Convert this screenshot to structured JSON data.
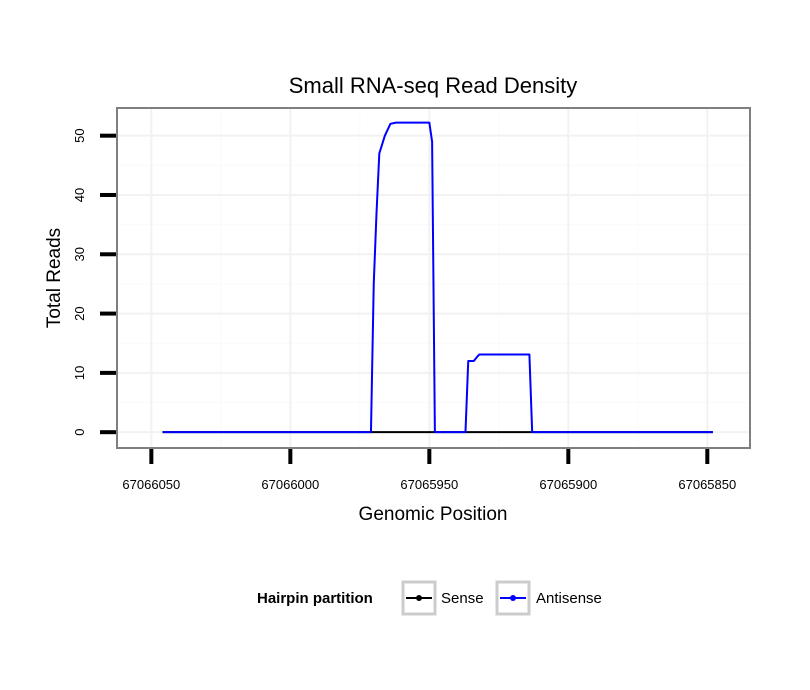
{
  "chart_data": {
    "type": "line",
    "title": "Small RNA-seq Read Density",
    "xlabel": "Genomic Position",
    "ylabel": "Total Reads",
    "xlim": [
      67066062,
      67065835
    ],
    "ylim": [
      -2.5,
      54.5
    ],
    "x_reversed": true,
    "x_ticks": [
      67066050,
      67066000,
      67065950,
      67065900,
      67065850
    ],
    "x_tick_labels": [
      "67066050",
      "67066000",
      "67065950",
      "67065900",
      "67065850"
    ],
    "y_ticks": [
      0,
      10,
      20,
      30,
      40,
      50
    ],
    "y_tick_labels": [
      "0",
      "10",
      "20",
      "30",
      "40",
      "50"
    ],
    "grid": true,
    "legend": {
      "title": "Hairpin partition",
      "position": "bottom",
      "entries": [
        {
          "label": "Sense",
          "color": "#000000"
        },
        {
          "label": "Antisense",
          "color": "#0000ff"
        }
      ]
    },
    "series": [
      {
        "name": "Sense",
        "color": "#000000",
        "x": [
          67066046,
          67065848
        ],
        "y": [
          0,
          0
        ]
      },
      {
        "name": "Antisense",
        "color": "#0000ff",
        "x": [
          67066046,
          67065971,
          67065970,
          67065969,
          67065968,
          67065966,
          67065964,
          67065962,
          67065959,
          67065950,
          67065949,
          67065948,
          67065937,
          67065936,
          67065934,
          67065933,
          67065932,
          67065930,
          67065914,
          67065913,
          67065848
        ],
        "y": [
          0,
          0,
          25,
          37,
          47,
          50,
          52,
          52.2,
          52.2,
          52.2,
          49,
          0,
          0,
          12,
          12,
          12.6,
          13.1,
          13.1,
          13.1,
          0,
          0
        ]
      }
    ]
  }
}
